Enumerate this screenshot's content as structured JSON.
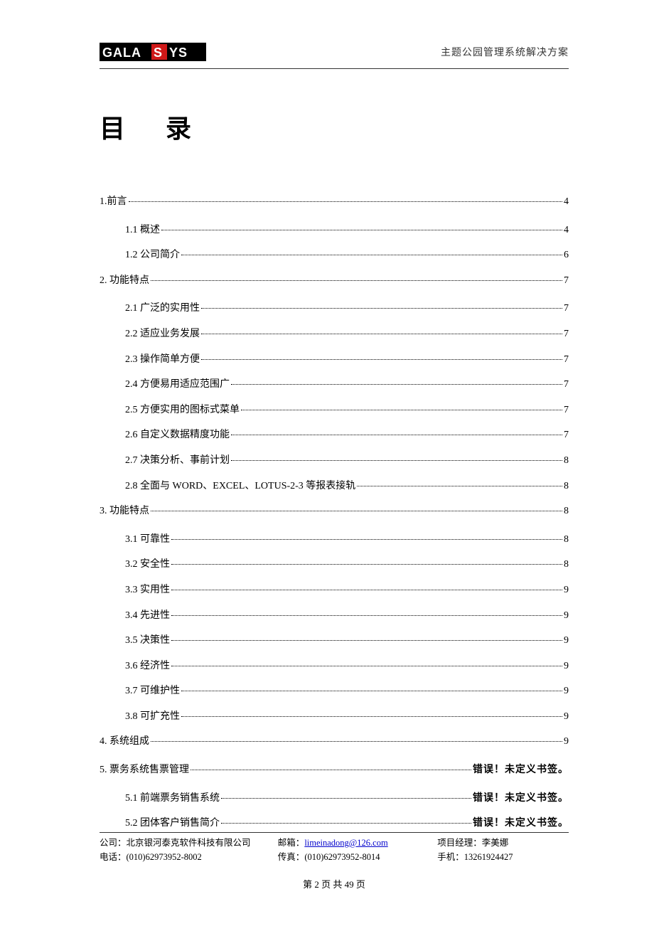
{
  "header": {
    "logo_text": "GALASYS",
    "doc_title": "主题公园管理系统解决方案"
  },
  "title": "目 录",
  "toc": [
    {
      "level": 1,
      "label": "1.前言",
      "page": "4"
    },
    {
      "level": 2,
      "label": "1.1 概述",
      "page": "4"
    },
    {
      "level": 2,
      "label": "1.2 公司简介",
      "page": "6"
    },
    {
      "level": 1,
      "label": "2. 功能特点",
      "page": "7"
    },
    {
      "level": 2,
      "label": "2.1 广泛的实用性",
      "page": "7"
    },
    {
      "level": 2,
      "label": "2.2 适应业务发展",
      "page": "7"
    },
    {
      "level": 2,
      "label": "2.3 操作简单方便",
      "page": "7"
    },
    {
      "level": 2,
      "label": "2.4 方便易用适应范围广",
      "page": "7"
    },
    {
      "level": 2,
      "label": "2.5 方便实用的图标式菜单",
      "page": "7"
    },
    {
      "level": 2,
      "label": "2.6 自定义数据精度功能",
      "page": "7"
    },
    {
      "level": 2,
      "label": "2.7 决策分析、事前计划",
      "page": "8"
    },
    {
      "level": 2,
      "label": "2.8 全面与 WORD、EXCEL、LOTUS-2-3 等报表接轨",
      "page": "8"
    },
    {
      "level": 1,
      "label": "3. 功能特点",
      "page": "8"
    },
    {
      "level": 2,
      "label": "3.1 可靠性",
      "page": "8"
    },
    {
      "level": 2,
      "label": "3.2 安全性",
      "page": "8"
    },
    {
      "level": 2,
      "label": "3.3 实用性",
      "page": "9"
    },
    {
      "level": 2,
      "label": "3.4 先进性",
      "page": "9"
    },
    {
      "level": 2,
      "label": "3.5 决策性",
      "page": "9"
    },
    {
      "level": 2,
      "label": "3.6 经济性",
      "page": "9"
    },
    {
      "level": 2,
      "label": "3.7 可维护性",
      "page": "9"
    },
    {
      "level": 2,
      "label": "3.8 可扩充性",
      "page": "9"
    },
    {
      "level": 1,
      "label": "4. 系统组成",
      "page": "9"
    },
    {
      "level": 1,
      "label": "5. 票务系统售票管理 ",
      "page": "错误！未定义书签。",
      "error": true
    },
    {
      "level": 2,
      "label": "5.1 前端票务销售系统 ",
      "page": "错误！未定义书签。",
      "error": true
    },
    {
      "level": 2,
      "label": "5.2 团体客户销售简介 ",
      "page": "错误！未定义书签。",
      "error": true
    }
  ],
  "footer": {
    "company_label": "公司：",
    "company": "北京银河泰克软件科技有限公司",
    "phone_label": "电话：",
    "phone": "(010)62973952-8002",
    "email_label": "邮箱：",
    "email": "limeinadong@126.com",
    "fax_label": "传真：",
    "fax": "(010)62973952-8014",
    "pm_label": "项目经理：",
    "pm": "李美娜",
    "mobile_label": "手机：",
    "mobile": "13261924427",
    "page_number": "第 2 页 共 49 页"
  },
  "colors": {
    "text": "#000000",
    "link": "#0000cc",
    "logo_bg": "#000000",
    "logo_accent": "#d01818",
    "logo_fg": "#ffffff"
  }
}
